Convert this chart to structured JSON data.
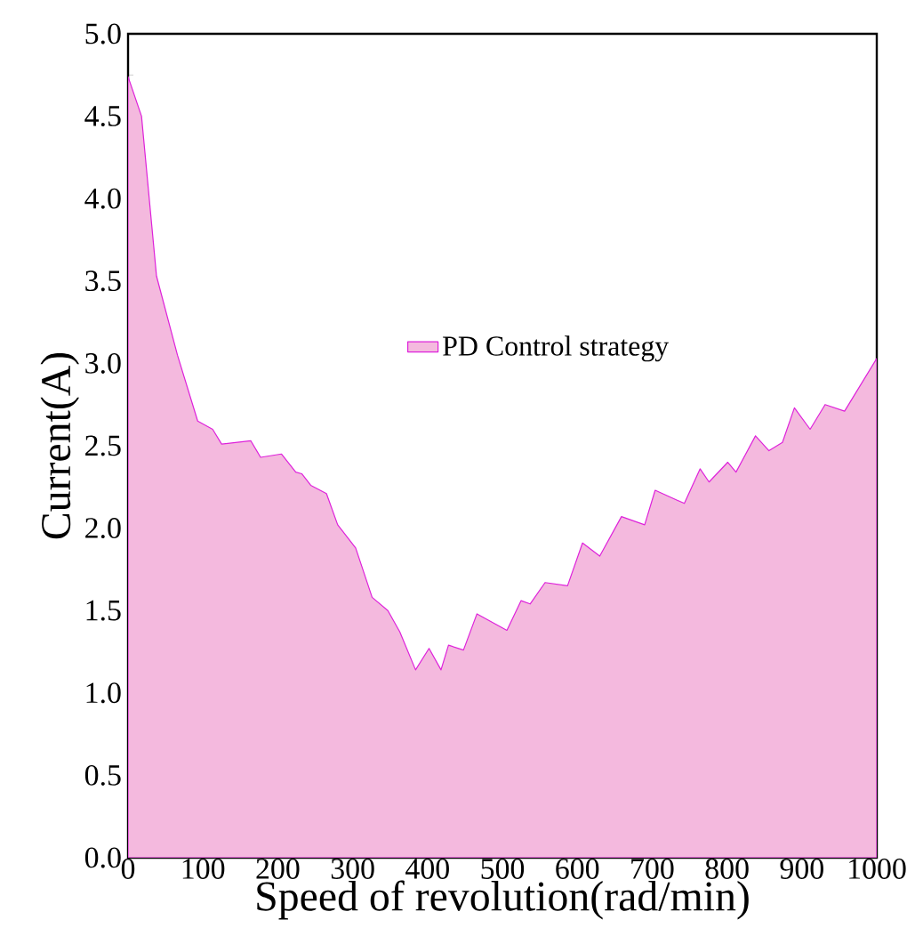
{
  "chart_data": {
    "type": "area",
    "xlabel": "Speed of revolution(rad/min)",
    "ylabel": "Current(A)",
    "x": [
      0,
      18,
      38,
      66,
      93,
      113,
      125,
      164,
      177,
      205,
      224,
      232,
      244,
      265,
      280,
      304,
      326,
      347,
      363,
      384,
      402,
      418,
      428,
      448,
      466,
      506,
      525,
      537,
      557,
      587,
      607,
      630,
      659,
      690,
      704,
      743,
      764,
      776,
      801,
      812,
      838,
      856,
      874,
      890,
      911,
      931,
      957,
      1000
    ],
    "series": [
      {
        "name": "PD Control strategy",
        "color": "#f4b9de",
        "values": [
          4.74,
          4.5,
          3.53,
          3.05,
          2.65,
          2.6,
          2.51,
          2.53,
          2.43,
          2.45,
          2.34,
          2.33,
          2.26,
          2.21,
          2.02,
          1.88,
          1.58,
          1.5,
          1.37,
          1.14,
          1.27,
          1.14,
          1.29,
          1.26,
          1.48,
          1.38,
          1.56,
          1.54,
          1.67,
          1.65,
          1.91,
          1.83,
          2.07,
          2.02,
          2.23,
          2.15,
          2.36,
          2.28,
          2.4,
          2.34,
          2.56,
          2.47,
          2.52,
          2.73,
          2.6,
          2.75,
          2.71,
          3.03
        ]
      }
    ],
    "xlim": [
      0,
      1000
    ],
    "xticks": [
      0,
      100,
      200,
      300,
      400,
      500,
      600,
      700,
      800,
      900,
      1000
    ],
    "ylim": [
      0,
      5
    ],
    "yticks": [
      {
        "value": 0,
        "label": "0.0"
      },
      {
        "value": 0.5,
        "label": "0.5"
      },
      {
        "value": 1,
        "label": "1.0"
      },
      {
        "value": 1.5,
        "label": "1.5"
      },
      {
        "value": 2,
        "label": "2.0"
      },
      {
        "value": 2.5,
        "label": "2.5"
      },
      {
        "value": 3,
        "label": "3.0"
      },
      {
        "value": 3.5,
        "label": "3.5"
      },
      {
        "value": 4,
        "label": "4.0"
      },
      {
        "value": 4.5,
        "label": "4.5"
      },
      {
        "value": 5,
        "label": "5.0"
      }
    ],
    "legend": "center",
    "grid": false
  }
}
